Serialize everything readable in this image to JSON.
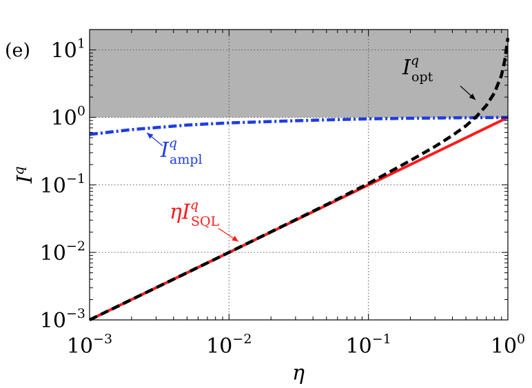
{
  "panel_label": "(e)",
  "chart_data": {
    "type": "line",
    "xscale": "log",
    "yscale": "log",
    "xlim": [
      0.001,
      1
    ],
    "ylim": [
      0.001,
      20
    ],
    "xlabel": "η",
    "ylabel": {
      "base": "I",
      "sup": "q"
    },
    "grid": true,
    "x_ticks": [
      {
        "value": 0.001,
        "base": "10",
        "exp": "−3"
      },
      {
        "value": 0.01,
        "base": "10",
        "exp": "−2"
      },
      {
        "value": 0.1,
        "base": "10",
        "exp": "−1"
      },
      {
        "value": 1,
        "base": "10",
        "exp": "0"
      }
    ],
    "y_ticks": [
      {
        "value": 0.001,
        "base": "10",
        "exp": "−3"
      },
      {
        "value": 0.01,
        "base": "10",
        "exp": "−2"
      },
      {
        "value": 0.1,
        "base": "10",
        "exp": "−1"
      },
      {
        "value": 1,
        "base": "10",
        "exp": "0"
      },
      {
        "value": 10,
        "base": "10",
        "exp": "1"
      }
    ],
    "shaded_region": {
      "y_from": 1,
      "y_to": 20,
      "color": "#b3b3b3"
    },
    "series": [
      {
        "name": "ηI_SQL^q",
        "label": {
          "prefix": "η",
          "base": "I",
          "sup": "q",
          "sub": "SQL"
        },
        "color": "#ff1a1a",
        "style": "solid",
        "x": [
          0.001,
          0.01,
          0.1,
          1
        ],
        "y": [
          0.001,
          0.01,
          0.1,
          1
        ]
      },
      {
        "name": "I_ampl^q",
        "label": {
          "prefix": "",
          "base": "I",
          "sup": "q",
          "sub": "ampl"
        },
        "color": "#1f3de0",
        "style": "dashdot",
        "x": [
          0.001,
          0.002,
          0.005,
          0.01,
          0.02,
          0.05,
          0.1,
          0.2,
          0.5,
          1
        ],
        "y": [
          0.56,
          0.66,
          0.77,
          0.83,
          0.87,
          0.92,
          0.95,
          0.97,
          0.99,
          1.0
        ]
      },
      {
        "name": "I_opt^q",
        "label": {
          "prefix": "",
          "base": "I",
          "sup": "q",
          "sub": "opt"
        },
        "color": "#000000",
        "style": "dashed",
        "x": [
          0.001,
          0.01,
          0.05,
          0.1,
          0.2,
          0.3,
          0.4,
          0.5,
          0.6,
          0.7,
          0.8,
          0.9,
          0.95,
          1
        ],
        "y": [
          0.001,
          0.01,
          0.051,
          0.105,
          0.23,
          0.37,
          0.54,
          0.75,
          1.05,
          1.5,
          2.3,
          4.2,
          7.0,
          15
        ]
      }
    ]
  }
}
